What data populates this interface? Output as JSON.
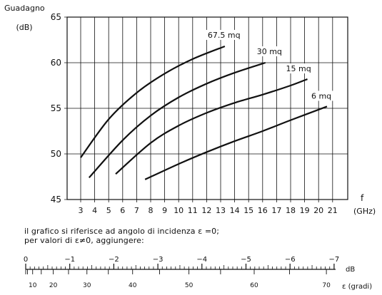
{
  "chart_data": {
    "type": "line",
    "ylabel": "Guadagno",
    "ylabel_unit": "(dB)",
    "xlabel": "f",
    "xlabel_unit": "(GHz)",
    "xlim": [
      3,
      21
    ],
    "ylim": [
      45,
      65
    ],
    "x_ticks": [
      3,
      4,
      5,
      6,
      7,
      8,
      9,
      10,
      11,
      12,
      13,
      14,
      15,
      16,
      17,
      18,
      19,
      20,
      21
    ],
    "y_ticks": [
      45,
      50,
      55,
      60,
      65
    ],
    "grid": true,
    "series": [
      {
        "name": "67.5 mq",
        "x": [
          3,
          5,
          7,
          9,
          11,
          13.3
        ],
        "y": [
          49.6,
          53.8,
          56.7,
          58.8,
          60.4,
          61.8
        ]
      },
      {
        "name": "30 mq",
        "x": [
          3.6,
          6,
          8,
          10,
          12,
          14,
          16.2
        ],
        "y": [
          47.4,
          51.5,
          54.2,
          56.2,
          57.7,
          58.9,
          60.0
        ]
      },
      {
        "name": "15 mq",
        "x": [
          5.5,
          8,
          10,
          12,
          14,
          16,
          18,
          19.2
        ],
        "y": [
          47.8,
          51.2,
          53.1,
          54.5,
          55.6,
          56.5,
          57.5,
          58.2
        ]
      },
      {
        "name": "6 mq",
        "x": [
          7.6,
          10,
          12,
          14,
          16,
          18,
          20.6
        ],
        "y": [
          47.2,
          48.9,
          50.2,
          51.4,
          52.5,
          53.7,
          55.2
        ]
      }
    ]
  },
  "notes": {
    "line1": "il grafico si riferisce ad angolo di incidenza ε =0;",
    "line2": "per valori di ε≠0, aggiungere:"
  },
  "scale": {
    "db_unit": "dB",
    "deg_unit": "ε (gradi)",
    "db_labels": [
      "0",
      "−1",
      "−2",
      "−3",
      "−4",
      "−5",
      "−6",
      "−7"
    ],
    "deg_labels": [
      "10",
      "20",
      "30",
      "40",
      "50",
      "60",
      "70"
    ]
  }
}
